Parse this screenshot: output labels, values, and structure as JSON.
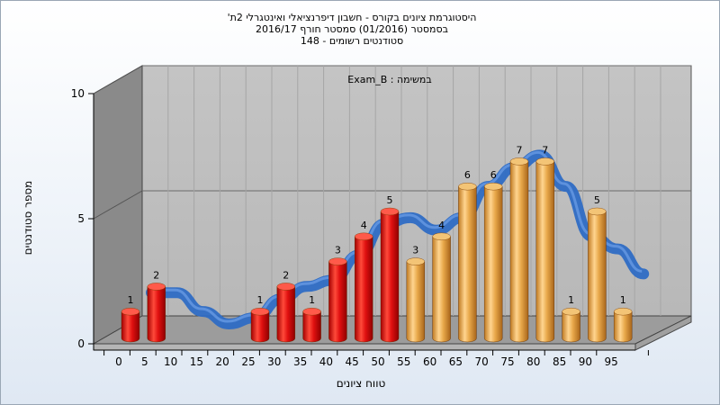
{
  "chart_data": {
    "type": "bar",
    "title_lines": [
      "היסטוגרמת ציונים בקורס - חשבון דיפרנציאלי ואינטגרלי 2ת'",
      "בסמסטר  (01/2016)  סמסטר חורף 2016/17",
      "סטודנטים רשומים - 148"
    ],
    "annotation": "במשימה : Exam_B",
    "xlabel": "טווח ציונים",
    "ylabel": "מספר סטודנטים",
    "categories": [
      "0",
      "5",
      "10",
      "15",
      "20",
      "25",
      "30",
      "35",
      "40",
      "45",
      "50",
      "55",
      "60",
      "65",
      "70",
      "75",
      "80",
      "85",
      "90",
      "95"
    ],
    "values": [
      1,
      2,
      0,
      0,
      0,
      1,
      2,
      1,
      3,
      4,
      5,
      3,
      4,
      6,
      6,
      7,
      7,
      1,
      5,
      1
    ],
    "yticks": [
      0,
      5,
      10
    ],
    "ylim": [
      0,
      10
    ],
    "grid": true,
    "bar_colors": {
      "fail": "#e01010",
      "pass": "#e8a84a"
    },
    "pass_from_category": "55",
    "curve_colors": {
      "main": "#2e6cc4",
      "alt": "#5a5a5a"
    }
  }
}
